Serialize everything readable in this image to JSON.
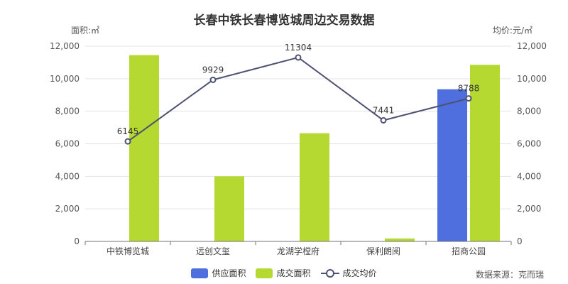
{
  "chart_data": {
    "type": "bar",
    "title": "长春中铁长春博览城周边交易数据",
    "ylabel": "面积:㎡",
    "y2label": "均价:元/㎡",
    "categories": [
      "中铁博览城",
      "远创文玺",
      "龙湖学樘府",
      "保利朗阅",
      "招商公园"
    ],
    "ylim": [
      0,
      12000
    ],
    "y2lim": [
      0,
      12000
    ],
    "yticks": [
      "0",
      "2,000",
      "4,000",
      "6,000",
      "8,000",
      "10,000",
      "12,000"
    ],
    "y2ticks": [
      "0",
      "2,000",
      "4,000",
      "6,000",
      "8,000",
      "10,000",
      "12,000"
    ],
    "series": [
      {
        "name": "供应面积",
        "type": "bar",
        "axis": "left",
        "color": "#4f6fde",
        "values": [
          0,
          0,
          0,
          0,
          9350
        ]
      },
      {
        "name": "成交面积",
        "type": "bar",
        "axis": "left",
        "color": "#b5d930",
        "values": [
          11450,
          4000,
          6650,
          180,
          10850
        ]
      },
      {
        "name": "成交均价",
        "type": "line",
        "axis": "right",
        "color": "#4e5272",
        "values": [
          6145,
          9929,
          11304,
          7441,
          8788
        ],
        "labels": [
          "6145",
          "9929",
          "11304",
          "7441",
          "8788"
        ]
      }
    ],
    "grid": true,
    "legend_position": "bottom"
  },
  "source_note": "数据来源：克而瑞"
}
